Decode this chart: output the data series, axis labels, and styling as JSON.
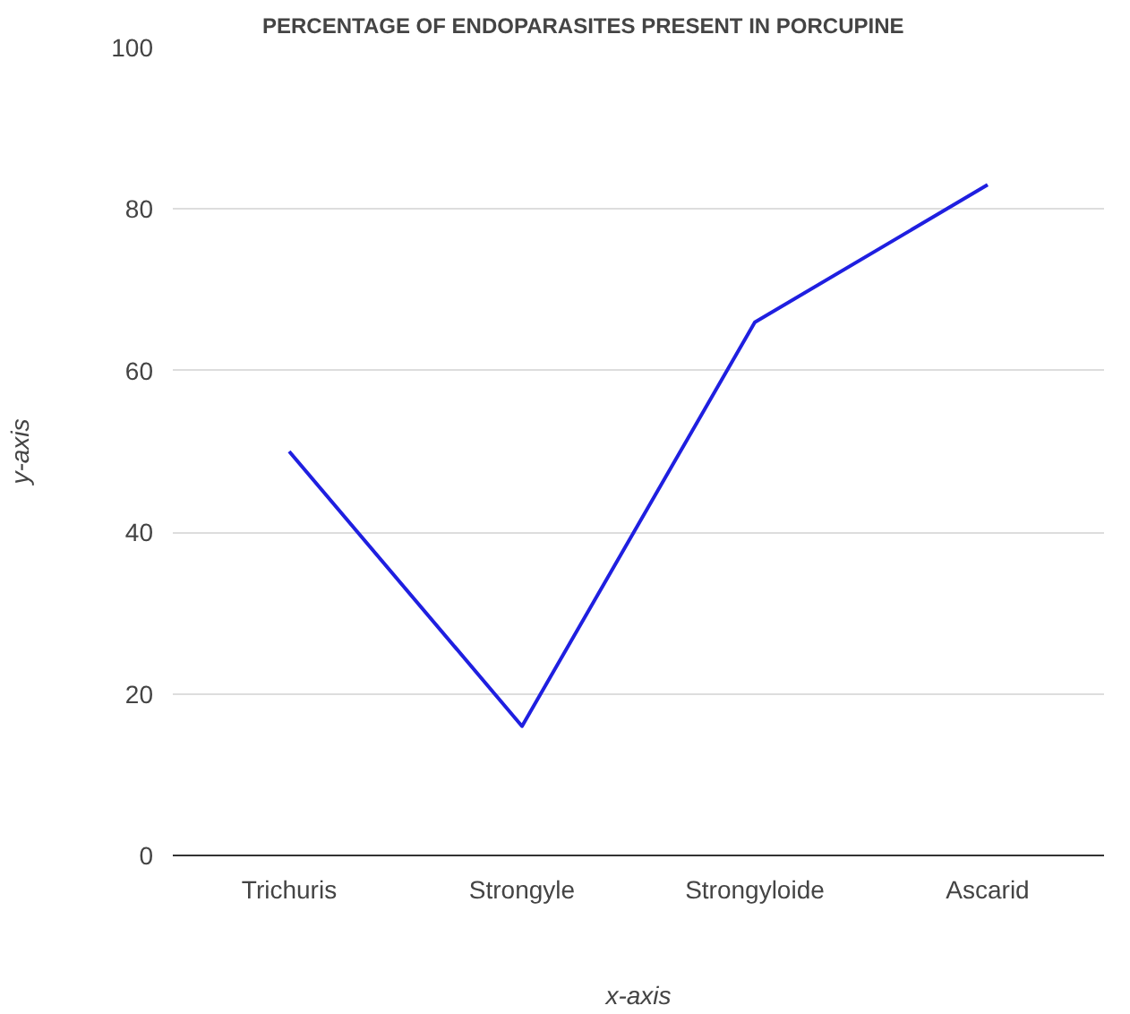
{
  "chart_data": {
    "type": "line",
    "title": "PERCENTAGE OF ENDOPARASITES PRESENT IN PORCUPINE",
    "xlabel": "x-axis",
    "ylabel": "y-axis",
    "categories": [
      "Trichuris",
      "Strongyle",
      "Strongyloide",
      "Ascarid"
    ],
    "series": [
      {
        "color": "#1f1fe0",
        "values": [
          50,
          16,
          66,
          83
        ]
      }
    ],
    "ylim": [
      0,
      100
    ],
    "yticks": [
      0,
      20,
      40,
      60,
      80,
      100
    ],
    "grid": "y",
    "marker": "none",
    "line_style": "solid"
  }
}
